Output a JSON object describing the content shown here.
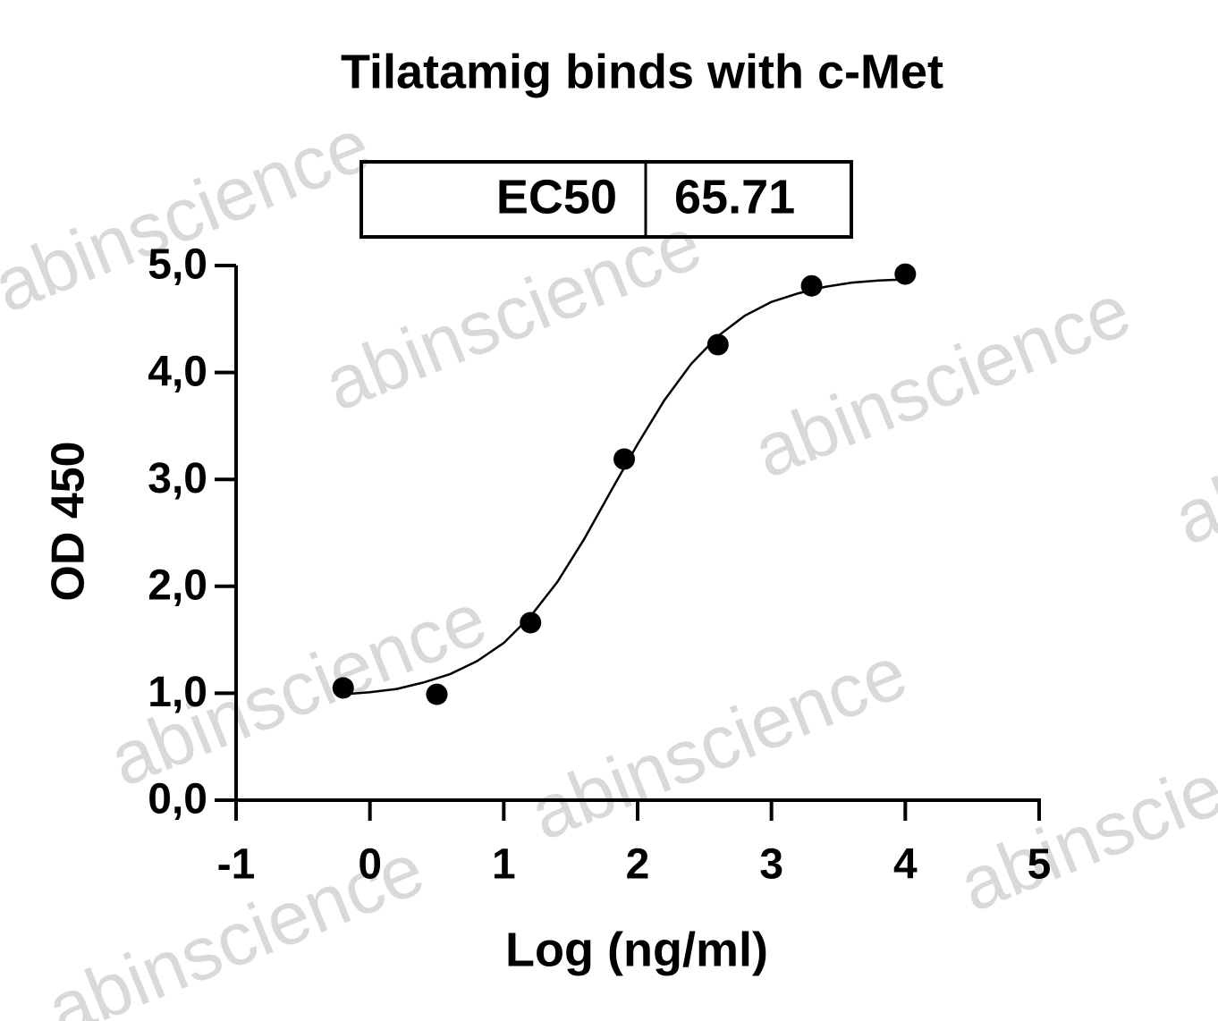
{
  "chart_data": {
    "type": "scatter",
    "title": "Tilatamig binds with c-Met",
    "xlabel": "Log (ng/ml)",
    "ylabel": "OD 450",
    "ec50": {
      "label": "EC50",
      "value": 65.71
    },
    "watermark": "abinscience",
    "x": [
      -0.2,
      0.5,
      1.2,
      1.9,
      2.6,
      3.3,
      4.0
    ],
    "values": [
      1.05,
      0.99,
      1.66,
      3.19,
      4.26,
      4.81,
      4.92
    ],
    "color": "#000000",
    "curve": {
      "x": [
        -0.2,
        0.0,
        0.2,
        0.4,
        0.6,
        0.8,
        1.0,
        1.2,
        1.4,
        1.6,
        1.8,
        2.0,
        2.2,
        2.4,
        2.6,
        2.8,
        3.0,
        3.2,
        3.4,
        3.6,
        3.8,
        4.0
      ],
      "values": [
        0.99,
        1.01,
        1.04,
        1.1,
        1.18,
        1.3,
        1.47,
        1.72,
        2.04,
        2.44,
        2.89,
        3.33,
        3.74,
        4.08,
        4.34,
        4.53,
        4.66,
        4.74,
        4.8,
        4.84,
        4.86,
        4.87
      ]
    },
    "xlim": [
      -1,
      5
    ],
    "xticks": [
      -1,
      0,
      1,
      2,
      3,
      4,
      5
    ],
    "ylim": [
      0,
      5
    ],
    "yticks": [
      {
        "value": 0,
        "label": "0,0"
      },
      {
        "value": 1,
        "label": "1,0"
      },
      {
        "value": 2,
        "label": "2,0"
      },
      {
        "value": 3,
        "label": "3,0"
      },
      {
        "value": 4,
        "label": "4,0"
      },
      {
        "value": 5,
        "label": "5,0"
      }
    ],
    "grid": false
  }
}
